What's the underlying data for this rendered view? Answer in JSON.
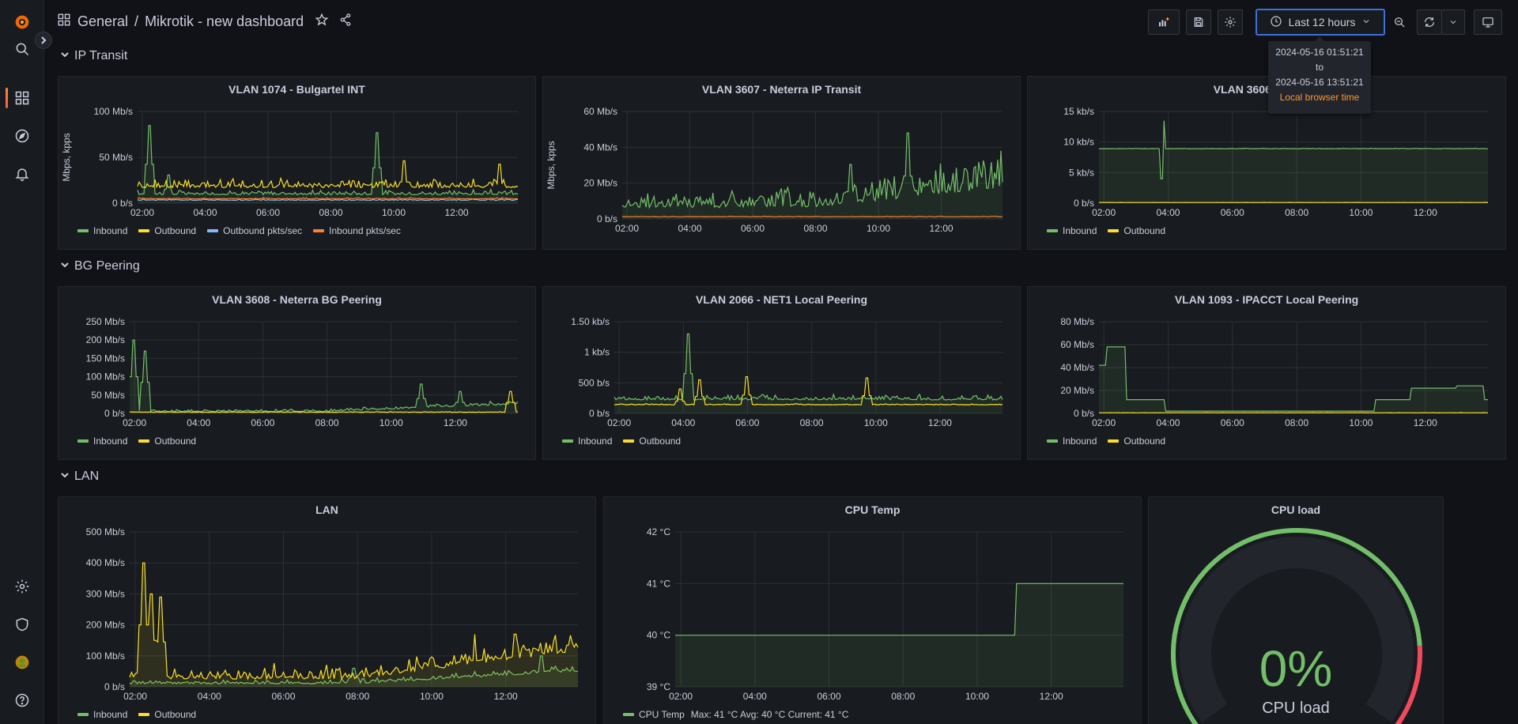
{
  "breadcrumb": {
    "folder": "General",
    "separator": "/",
    "dashboard": "Mikrotik - new dashboard"
  },
  "time_picker": {
    "label": "Last 12 hours"
  },
  "time_tooltip": {
    "from": "2024-05-16 01:51:21",
    "to_word": "to",
    "to": "2024-05-16 13:51:21",
    "timezone": "Local browser time"
  },
  "colors": {
    "inbound": "#73bf69",
    "outbound": "#fade2a",
    "outbound_pkts": "#8ab8ff",
    "inbound_pkts": "#ff7f2a",
    "threshold_red": "#f2495c"
  },
  "rows": [
    {
      "title": "IP Transit"
    },
    {
      "title": "BG Peering"
    },
    {
      "title": "LAN"
    }
  ],
  "x_ticks_a": [
    "02:00",
    "04:00",
    "06:00",
    "08:00",
    "10:00",
    "12:00"
  ],
  "panels": [
    {
      "id": "p1",
      "title": "VLAN 1074 - Bulgartel INT",
      "ylabel": "Mbps, kpps",
      "yticks": [
        "100 Mb/s",
        "50 Mb/s",
        "0 b/s"
      ],
      "ymax": 130,
      "legend": [
        "Inbound",
        "Outbound",
        "Outbound pkts/sec",
        "Inbound pkts/sec"
      ],
      "series": [
        {
          "name": "Inbound",
          "color": "#73bf69",
          "base": 12,
          "noise": 8,
          "spikes": [
            [
              0.03,
              110
            ],
            [
              0.63,
              100
            ],
            [
              0.08,
              40
            ]
          ],
          "fill": true
        },
        {
          "name": "Outbound",
          "color": "#fade2a",
          "base": 22,
          "noise": 14,
          "spikes": [
            [
              0.7,
              60
            ],
            [
              0.95,
              55
            ]
          ],
          "fill": false
        },
        {
          "name": "Outbound pkts/sec",
          "color": "#8ab8ff",
          "base": 4,
          "noise": 2,
          "spikes": [],
          "fill": false
        },
        {
          "name": "Inbound pkts/sec",
          "color": "#ff7f2a",
          "base": 6,
          "noise": 2,
          "spikes": [],
          "fill": false
        }
      ]
    },
    {
      "id": "p2",
      "title": "VLAN 3607 - Neterra IP Transit",
      "ylabel": "Mbps, kpps",
      "yticks": [
        "60 Mb/s",
        "40 Mb/s",
        "20 Mb/s",
        "0 b/s"
      ],
      "ymax": 75,
      "legend": [],
      "series": [
        {
          "name": "Inbound",
          "color": "#73bf69",
          "base": 8,
          "noise": 14,
          "spikes": [
            [
              0.75,
              60
            ],
            [
              0.6,
              38
            ],
            [
              0.9,
              35
            ]
          ],
          "fill": true,
          "trend": 14
        },
        {
          "name": "Outbound",
          "color": "#ff7f2a",
          "base": 1.5,
          "noise": 0.5,
          "spikes": [],
          "fill": false
        }
      ]
    },
    {
      "id": "p3",
      "title": "VLAN 3606 - Neterra",
      "ylabel": "",
      "yticks": [
        "15 kb/s",
        "10 kb/s",
        "5 kb/s",
        "0 b/s"
      ],
      "ymax": 15,
      "legend": [
        "Inbound",
        "Outbound"
      ],
      "series": [
        {
          "name": "Inbound",
          "color": "#73bf69",
          "base": 8.9,
          "noise": 0.1,
          "spikes": [
            [
              0.165,
              13.5
            ],
            [
              0.16,
              4
            ]
          ],
          "fill": true
        },
        {
          "name": "Outbound",
          "color": "#fade2a",
          "base": 0.1,
          "noise": 0.02,
          "spikes": [],
          "fill": false
        }
      ]
    },
    {
      "id": "p4",
      "title": "VLAN 3608 - Neterra BG Peering",
      "ylabel": "",
      "yticks": [
        "250 Mb/s",
        "200 Mb/s",
        "150 Mb/s",
        "100 Mb/s",
        "50 Mb/s",
        "0 b/s"
      ],
      "ymax": 250,
      "legend": [
        "Inbound",
        "Outbound"
      ],
      "series": [
        {
          "name": "Inbound",
          "color": "#73bf69",
          "base": 5,
          "noise": 6,
          "spikes": [
            [
              0.01,
              200
            ],
            [
              0.04,
              170
            ],
            [
              0.75,
              80
            ],
            [
              0.85,
              60
            ]
          ],
          "fill": true,
          "trend": 20
        },
        {
          "name": "Outbound",
          "color": "#fade2a",
          "base": 3,
          "noise": 2,
          "spikes": [
            [
              0.98,
              60
            ]
          ],
          "fill": false
        }
      ]
    },
    {
      "id": "p5",
      "title": "VLAN 2066 - NET1 Local Peering",
      "ylabel": "",
      "yticks": [
        "1.50 kb/s",
        "1 kb/s",
        "500 b/s",
        "0 b/s"
      ],
      "ymax": 1.5,
      "legend": [
        "Inbound",
        "Outbound"
      ],
      "series": [
        {
          "name": "Inbound",
          "color": "#73bf69",
          "base": 0.22,
          "noise": 0.1,
          "spikes": [
            [
              0.19,
              1.3
            ]
          ],
          "fill": true
        },
        {
          "name": "Outbound",
          "color": "#fade2a",
          "base": 0.14,
          "noise": 0.02,
          "spikes": [
            [
              0.22,
              0.55
            ],
            [
              0.34,
              0.6
            ],
            [
              0.65,
              0.58
            ],
            [
              0.17,
              0.4
            ]
          ],
          "fill": false
        }
      ]
    },
    {
      "id": "p6",
      "title": "VLAN 1093 - IPACCT Local Peering",
      "ylabel": "",
      "yticks": [
        "80 Mb/s",
        "60 Mb/s",
        "40 Mb/s",
        "20 Mb/s",
        "0 b/s"
      ],
      "ymax": 80,
      "legend": [
        "Inbound",
        "Outbound"
      ],
      "series": [
        {
          "name": "Inbound",
          "color": "#73bf69",
          "steps": [
            [
              0,
              42
            ],
            [
              0.02,
              58
            ],
            [
              0.07,
              12
            ],
            [
              0.17,
              2
            ],
            [
              0.71,
              12
            ],
            [
              0.8,
              22
            ],
            [
              0.92,
              24
            ],
            [
              0.99,
              12
            ]
          ],
          "fill": true
        },
        {
          "name": "Outbound",
          "color": "#fade2a",
          "base": 0.5,
          "noise": 0.2,
          "spikes": [],
          "fill": false
        }
      ]
    },
    {
      "id": "p7",
      "title": "LAN",
      "ylabel": "",
      "yticks": [
        "500 Mb/s",
        "400 Mb/s",
        "300 Mb/s",
        "200 Mb/s",
        "100 Mb/s",
        "0 b/s"
      ],
      "ymax": 500,
      "legend": [
        "Inbound",
        "Outbound"
      ],
      "series": [
        {
          "name": "Inbound",
          "color": "#73bf69",
          "base": 10,
          "noise": 12,
          "spikes": [
            [
              0.5,
              60
            ],
            [
              0.92,
              100
            ]
          ],
          "fill": true,
          "trend": 40
        },
        {
          "name": "Outbound",
          "color": "#fade2a",
          "base": 25,
          "noise": 40,
          "spikes": [
            [
              0.03,
              400
            ],
            [
              0.05,
              300
            ],
            [
              0.07,
              290
            ],
            [
              0.77,
              170
            ],
            [
              0.86,
              170
            ]
          ],
          "fill": true,
          "trend": 90
        }
      ]
    },
    {
      "id": "p8",
      "title": "CPU Temp",
      "ylabel": "",
      "yticks": [
        "42 °C",
        "41 °C",
        "40 °C",
        "39 °C"
      ],
      "ymax": 42,
      "ymin": 39,
      "legend": [
        "CPU Temp"
      ],
      "legend_stats": "Max: 41 °C  Avg: 40 °C  Current: 41 °C",
      "series": [
        {
          "name": "CPU Temp",
          "color": "#73bf69",
          "steps": [
            [
              0,
              40
            ],
            [
              0.76,
              41
            ]
          ],
          "fill": true
        }
      ]
    }
  ],
  "cpu_load": {
    "title": "CPU load",
    "value": "0%",
    "label": "CPU load"
  }
}
